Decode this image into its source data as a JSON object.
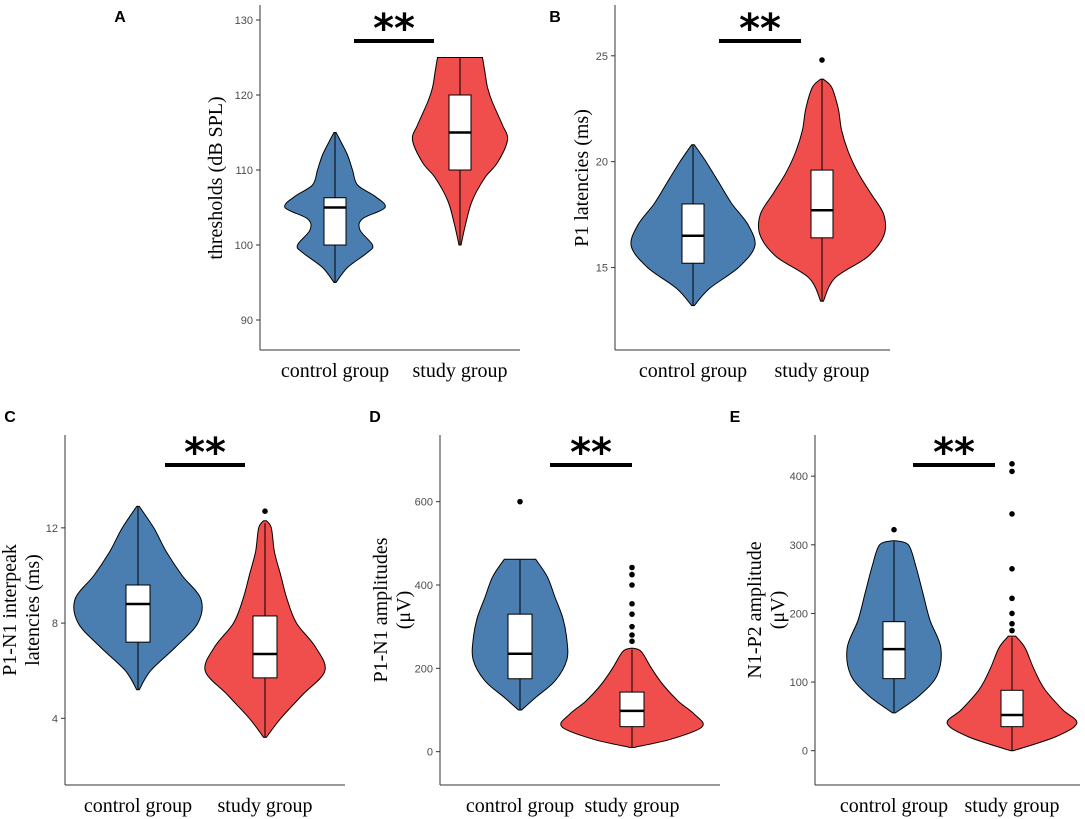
{
  "colors": {
    "control": "#4a7eb1",
    "study": "#f04d4d",
    "box": "#ffffff",
    "outline": "#000000",
    "axis": "#333333"
  },
  "chart_data": [
    {
      "id": "A",
      "letter": "A",
      "type": "violin",
      "ylabel": [
        "thresholds (dB SPL)"
      ],
      "ylim": [
        86,
        132
      ],
      "yticks": [
        90,
        100,
        110,
        120,
        130
      ],
      "ytick_labels": [
        "90",
        "100",
        "110",
        "120",
        "130"
      ],
      "significance": "**",
      "groups": [
        {
          "name": "control group",
          "color_key": "control",
          "whisker_low": 95,
          "q1": 100,
          "median": 105,
          "q3": 106.3,
          "whisker_high": 115,
          "outliers": [],
          "violin": [
            [
              95,
              0.02
            ],
            [
              97,
              0.25
            ],
            [
              99,
              0.65
            ],
            [
              100,
              0.75
            ],
            [
              102,
              0.5
            ],
            [
              103.5,
              0.55
            ],
            [
              105,
              1.0
            ],
            [
              106.5,
              0.8
            ],
            [
              108,
              0.45
            ],
            [
              110,
              0.35
            ],
            [
              112,
              0.25
            ],
            [
              114,
              0.1
            ],
            [
              115,
              0.02
            ]
          ]
        },
        {
          "name": "study group",
          "color_key": "study",
          "whisker_low": 100,
          "q1": 110,
          "median": 115,
          "q3": 120,
          "whisker_high": 125,
          "outliers": [],
          "violin": [
            [
              100,
              0.02
            ],
            [
              103,
              0.12
            ],
            [
              106,
              0.25
            ],
            [
              109,
              0.5
            ],
            [
              111,
              0.75
            ],
            [
              114,
              0.95
            ],
            [
              116,
              0.85
            ],
            [
              119,
              0.65
            ],
            [
              121,
              0.55
            ],
            [
              123,
              0.5
            ],
            [
              125,
              0.45
            ]
          ]
        }
      ]
    },
    {
      "id": "B",
      "letter": "B",
      "type": "violin",
      "ylabel": [
        "P1 latencies (ms)"
      ],
      "ylim": [
        11.1,
        27.4
      ],
      "yticks": [
        15,
        20,
        25
      ],
      "ytick_labels": [
        "15",
        "20",
        "25"
      ],
      "significance": "**",
      "groups": [
        {
          "name": "control group",
          "color_key": "control",
          "whisker_low": 13.2,
          "q1": 15.2,
          "median": 16.5,
          "q3": 18,
          "whisker_high": 20.8,
          "outliers": [],
          "violin": [
            [
              13.2,
              0.02
            ],
            [
              14,
              0.25
            ],
            [
              15,
              0.7
            ],
            [
              16,
              0.95
            ],
            [
              17,
              0.85
            ],
            [
              18,
              0.6
            ],
            [
              19,
              0.4
            ],
            [
              20,
              0.2
            ],
            [
              20.8,
              0.02
            ]
          ]
        },
        {
          "name": "study group",
          "color_key": "study",
          "whisker_low": 13.4,
          "q1": 16.4,
          "median": 17.7,
          "q3": 19.6,
          "whisker_high": 23.9,
          "outliers": [
            24.8
          ],
          "violin": [
            [
              13.4,
              0.02
            ],
            [
              14.5,
              0.2
            ],
            [
              15.5,
              0.7
            ],
            [
              16.5,
              0.95
            ],
            [
              17.5,
              0.95
            ],
            [
              18.5,
              0.75
            ],
            [
              19.5,
              0.55
            ],
            [
              20.5,
              0.4
            ],
            [
              21.5,
              0.3
            ],
            [
              22.5,
              0.25
            ],
            [
              23.5,
              0.15
            ],
            [
              23.9,
              0.02
            ]
          ]
        }
      ]
    },
    {
      "id": "C",
      "letter": "C",
      "type": "violin",
      "ylabel": [
        "P1-N1 interpeak",
        "latencies (ms)"
      ],
      "ylim": [
        1.2,
        15.9
      ],
      "yticks": [
        4,
        8,
        12
      ],
      "ytick_labels": [
        "4",
        "8",
        "12"
      ],
      "significance": "**",
      "groups": [
        {
          "name": "control group",
          "color_key": "control",
          "whisker_low": 5.2,
          "q1": 7.2,
          "median": 8.8,
          "q3": 9.6,
          "whisker_high": 12.9,
          "outliers": [],
          "violin": [
            [
              5.2,
              0.02
            ],
            [
              6,
              0.2
            ],
            [
              7,
              0.6
            ],
            [
              8,
              0.95
            ],
            [
              9,
              1.0
            ],
            [
              10,
              0.7
            ],
            [
              11,
              0.45
            ],
            [
              12,
              0.25
            ],
            [
              12.9,
              0.02
            ]
          ]
        },
        {
          "name": "study group",
          "color_key": "study",
          "whisker_low": 3.2,
          "q1": 5.7,
          "median": 6.7,
          "q3": 8.3,
          "whisker_high": 12.2,
          "outliers": [
            12.7
          ],
          "violin": [
            [
              3.2,
              0.02
            ],
            [
              4,
              0.25
            ],
            [
              5,
              0.6
            ],
            [
              6,
              0.95
            ],
            [
              7,
              0.8
            ],
            [
              8,
              0.5
            ],
            [
              9,
              0.35
            ],
            [
              10,
              0.25
            ],
            [
              11,
              0.15
            ],
            [
              12,
              0.1
            ],
            [
              12.3,
              0.02
            ]
          ]
        }
      ]
    },
    {
      "id": "D",
      "letter": "D",
      "type": "violin",
      "ylabel": [
        "P1-N1 amplitudes",
        "(μV)"
      ],
      "ylim": [
        -80,
        760
      ],
      "yticks": [
        0,
        200,
        400,
        600
      ],
      "ytick_labels": [
        "0",
        "200",
        "400",
        "600"
      ],
      "significance": "**",
      "groups": [
        {
          "name": "control group",
          "color_key": "control",
          "whisker_low": 100,
          "q1": 175,
          "median": 235,
          "q3": 330,
          "whisker_high": 462,
          "outliers": [
            600
          ],
          "violin": [
            [
              100,
              0.02
            ],
            [
              130,
              0.2
            ],
            [
              170,
              0.45
            ],
            [
              220,
              0.6
            ],
            [
              270,
              0.6
            ],
            [
              320,
              0.55
            ],
            [
              370,
              0.45
            ],
            [
              420,
              0.35
            ],
            [
              462,
              0.2
            ]
          ]
        },
        {
          "name": "study group",
          "color_key": "study",
          "whisker_low": 10,
          "q1": 60,
          "median": 98,
          "q3": 143,
          "whisker_high": 245,
          "outliers": [
            265,
            280,
            300,
            330,
            355,
            400,
            425,
            442
          ],
          "violin": [
            [
              10,
              0.02
            ],
            [
              30,
              0.5
            ],
            [
              60,
              0.9
            ],
            [
              90,
              0.8
            ],
            [
              120,
              0.6
            ],
            [
              160,
              0.4
            ],
            [
              200,
              0.25
            ],
            [
              240,
              0.12
            ],
            [
              248,
              0.02
            ]
          ]
        }
      ]
    },
    {
      "id": "E",
      "letter": "E",
      "type": "violin",
      "ylabel": [
        "N1-P2 amplitude",
        "(μV)"
      ],
      "ylim": [
        -50,
        460
      ],
      "yticks": [
        0,
        100,
        200,
        300,
        400
      ],
      "ytick_labels": [
        "0",
        "100",
        "200",
        "300",
        "400"
      ],
      "significance": "**",
      "groups": [
        {
          "name": "control group",
          "color_key": "control",
          "whisker_low": 55,
          "q1": 105,
          "median": 148,
          "q3": 188,
          "whisker_high": 305,
          "outliers": [
            322
          ],
          "violin": [
            [
              55,
              0.02
            ],
            [
              80,
              0.35
            ],
            [
              110,
              0.6
            ],
            [
              150,
              0.65
            ],
            [
              190,
              0.5
            ],
            [
              230,
              0.4
            ],
            [
              270,
              0.3
            ],
            [
              300,
              0.2
            ],
            [
              306,
              0.02
            ]
          ]
        },
        {
          "name": "study group",
          "color_key": "study",
          "whisker_low": 0,
          "q1": 35,
          "median": 52,
          "q3": 88,
          "whisker_high": 165,
          "outliers": [
            175,
            185,
            200,
            222,
            265,
            345,
            407,
            418
          ],
          "violin": [
            [
              0,
              0.02
            ],
            [
              20,
              0.6
            ],
            [
              40,
              0.9
            ],
            [
              60,
              0.7
            ],
            [
              90,
              0.45
            ],
            [
              120,
              0.3
            ],
            [
              150,
              0.18
            ],
            [
              167,
              0.05
            ]
          ]
        }
      ]
    }
  ]
}
